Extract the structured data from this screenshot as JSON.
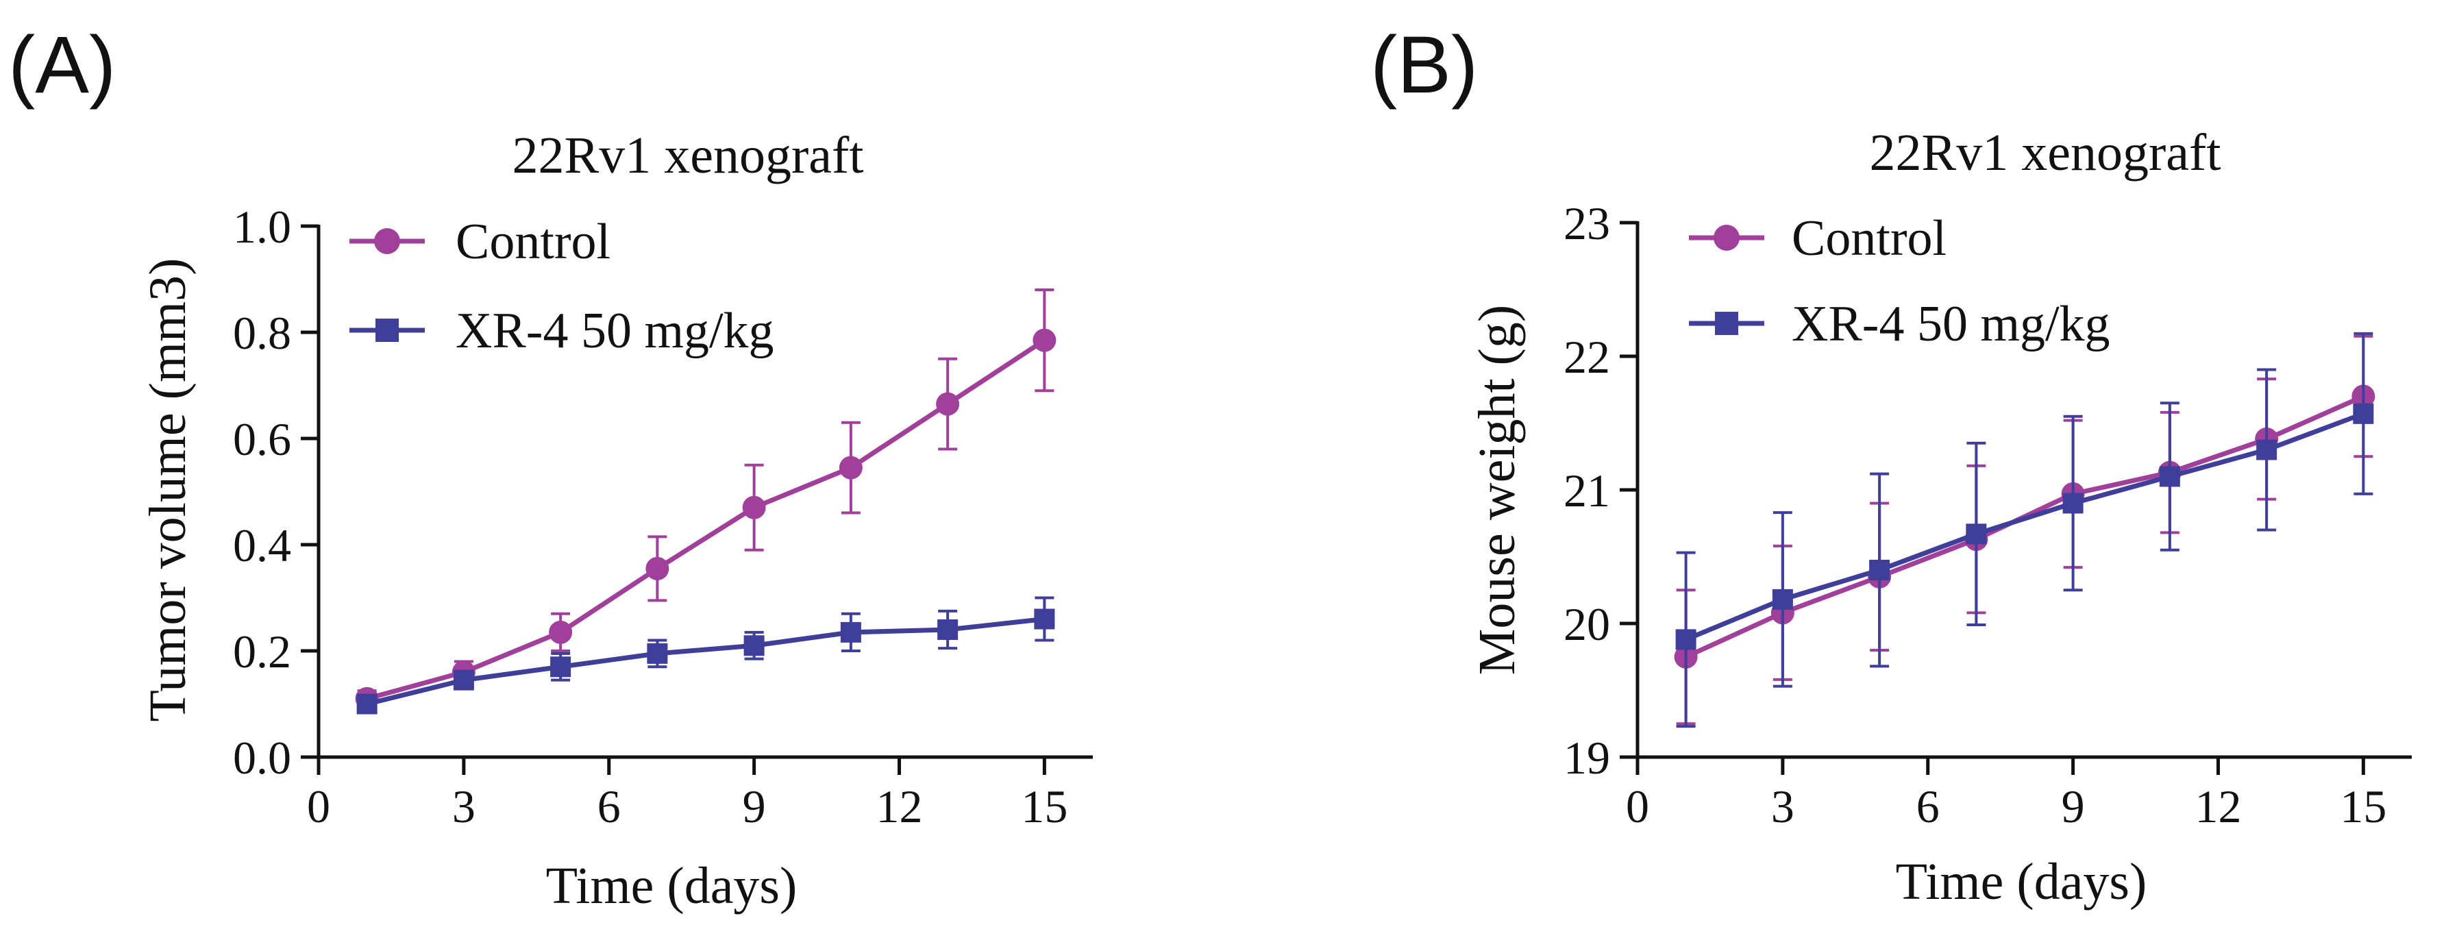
{
  "colors": {
    "control": "#a0409a",
    "treated": "#3f3f9a",
    "axis": "#111111"
  },
  "chart_data": [
    {
      "type": "line",
      "panel_label": "(A)",
      "title": "22Rv1 xenograft",
      "xlabel": "Time (days)",
      "ylabel": "Tumor volume (mm3)",
      "xlim": [
        0,
        16
      ],
      "ylim": [
        0,
        1.0
      ],
      "xticks": [
        0,
        3,
        6,
        9,
        12,
        15
      ],
      "xtick_labels": [
        "0",
        "3",
        "6",
        "9",
        "12",
        "15"
      ],
      "yticks": [
        0,
        0.2,
        0.4,
        0.6,
        0.8,
        1.0
      ],
      "ytick_labels": [
        "0.0",
        "0.2",
        "0.4",
        "0.6",
        "0.8",
        "1.0"
      ],
      "legend_position": "top-left",
      "grid": false,
      "series": [
        {
          "name": "Control",
          "marker": "circle",
          "color_key": "control",
          "x": [
            1,
            3,
            5,
            7,
            9,
            11,
            13,
            15
          ],
          "y": [
            0.11,
            0.16,
            0.235,
            0.355,
            0.47,
            0.545,
            0.665,
            0.785
          ],
          "err": [
            0.015,
            0.02,
            0.035,
            0.06,
            0.08,
            0.085,
            0.085,
            0.095
          ]
        },
        {
          "name": "XR-4 50 mg/kg",
          "marker": "square",
          "color_key": "treated",
          "x": [
            1,
            3,
            5,
            7,
            9,
            11,
            13,
            15
          ],
          "y": [
            0.1,
            0.145,
            0.17,
            0.195,
            0.21,
            0.235,
            0.24,
            0.26
          ],
          "err": [
            0.012,
            0.015,
            0.025,
            0.025,
            0.025,
            0.035,
            0.035,
            0.04
          ]
        }
      ]
    },
    {
      "type": "line",
      "panel_label": "(B)",
      "title": "22Rv1 xenograft",
      "xlabel": "Time (days)",
      "ylabel": "Mouse weight (g)",
      "xlim": [
        0,
        16
      ],
      "ylim": [
        19,
        23
      ],
      "xticks": [
        0,
        3,
        6,
        9,
        12,
        15
      ],
      "xtick_labels": [
        "0",
        "3",
        "6",
        "9",
        "12",
        "15"
      ],
      "yticks": [
        19,
        20,
        21,
        22,
        23
      ],
      "ytick_labels": [
        "19",
        "20",
        "21",
        "22",
        "23"
      ],
      "legend_position": "top-left",
      "grid": false,
      "series": [
        {
          "name": "Control",
          "marker": "circle",
          "color_key": "control",
          "x": [
            1,
            3,
            5,
            7,
            9,
            11,
            13,
            15
          ],
          "y": [
            19.75,
            20.08,
            20.35,
            20.63,
            20.97,
            21.13,
            21.38,
            21.7
          ],
          "err": [
            0.5,
            0.5,
            0.55,
            0.55,
            0.55,
            0.45,
            0.45,
            0.45
          ]
        },
        {
          "name": "XR-4 50 mg/kg",
          "marker": "square",
          "color_key": "treated",
          "x": [
            1,
            3,
            5,
            7,
            9,
            11,
            13,
            15
          ],
          "y": [
            19.88,
            20.18,
            20.4,
            20.67,
            20.9,
            21.1,
            21.3,
            21.57
          ],
          "err": [
            0.65,
            0.65,
            0.72,
            0.68,
            0.65,
            0.55,
            0.6,
            0.6
          ]
        }
      ]
    }
  ]
}
